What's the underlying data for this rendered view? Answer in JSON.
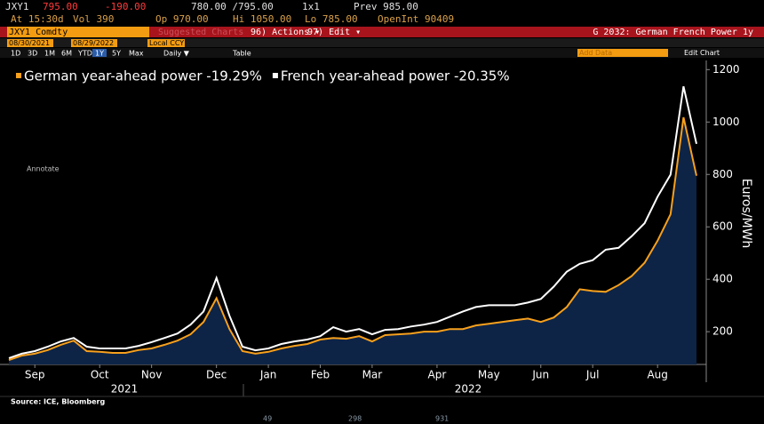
{
  "terminal": {
    "ticker": "JXY1",
    "last": "795.00",
    "change": "-190.00",
    "bid_ask": "780.00 /795.00",
    "size": "1x1",
    "prev": "Prev 985.00",
    "time": "At 15:30d",
    "vol": "Vol 390",
    "open": "Op 970.00",
    "high": "Hi 1050.00",
    "low": "Lo 785.00",
    "open_int": "OpenInt 90409",
    "security": "JXY1 Comdty",
    "suggested": "Suggested Charts",
    "actions": "96) Actions ▾",
    "edit": "97) Edit ▾",
    "chart_name": "G 2032: German French Power 1y",
    "start_date": "08/30/2021",
    "end_date": "08/29/2022",
    "currency": "Local CCY",
    "periods": [
      "1D",
      "3D",
      "1M",
      "6M",
      "YTD",
      "1Y",
      "5Y",
      "Max"
    ],
    "frequency": "Daily ▼",
    "table": "Table",
    "add_data": "Add Data",
    "edit_chart": "Edit Chart",
    "annotate": "Annotate"
  },
  "chart_data": {
    "type": "line",
    "y_label": "Euros/MWh",
    "categories": [
      null,
      null,
      "Sep",
      null,
      null,
      null,
      null,
      "Oct",
      null,
      null,
      null,
      "Nov",
      null,
      null,
      null,
      null,
      "Dec",
      null,
      null,
      null,
      "Jan",
      null,
      null,
      null,
      "Feb",
      null,
      null,
      null,
      "Mar",
      null,
      null,
      null,
      null,
      "Apr",
      null,
      null,
      null,
      "May",
      null,
      null,
      null,
      "Jun",
      null,
      null,
      null,
      "Jul",
      null,
      null,
      null,
      null,
      "Aug",
      null,
      null,
      null
    ],
    "year_labels": [
      "2021",
      "2022"
    ],
    "series": [
      {
        "name": "German year-ahead power -19.29%",
        "color": "#f7a01d",
        "area_color": "#0d2447",
        "values": [
          92,
          109,
          116,
          130,
          150,
          166,
          126,
          123,
          119,
          119,
          130,
          136,
          150,
          166,
          190,
          237,
          328,
          210,
          126,
          116,
          123,
          136,
          146,
          153,
          170,
          176,
          173,
          183,
          163,
          187,
          190,
          193,
          200,
          200,
          210,
          210,
          224,
          230,
          237,
          244,
          250,
          237,
          254,
          294,
          362,
          355,
          352,
          378,
          412,
          463,
          547,
          648,
          1018,
          795
        ]
      },
      {
        "name": "French year-ahead power -20.35%",
        "color": "#ffffff",
        "values": [
          99,
          116,
          126,
          143,
          163,
          176,
          143,
          136,
          136,
          136,
          146,
          160,
          176,
          193,
          227,
          277,
          405,
          261,
          143,
          129,
          136,
          153,
          163,
          170,
          183,
          217,
          200,
          210,
          190,
          207,
          210,
          220,
          227,
          237,
          257,
          277,
          294,
          301,
          301,
          301,
          311,
          325,
          372,
          429,
          459,
          473,
          513,
          520,
          564,
          614,
          715,
          799,
          1136,
          917
        ]
      }
    ],
    "ylim": [
      75,
      1235
    ],
    "yticks": [
      200,
      400,
      600,
      800,
      1000,
      1200
    ]
  },
  "source": "Source: ICE, Bloomberg",
  "social": {
    "replies": "49",
    "retweets": "298",
    "likes": "931"
  }
}
